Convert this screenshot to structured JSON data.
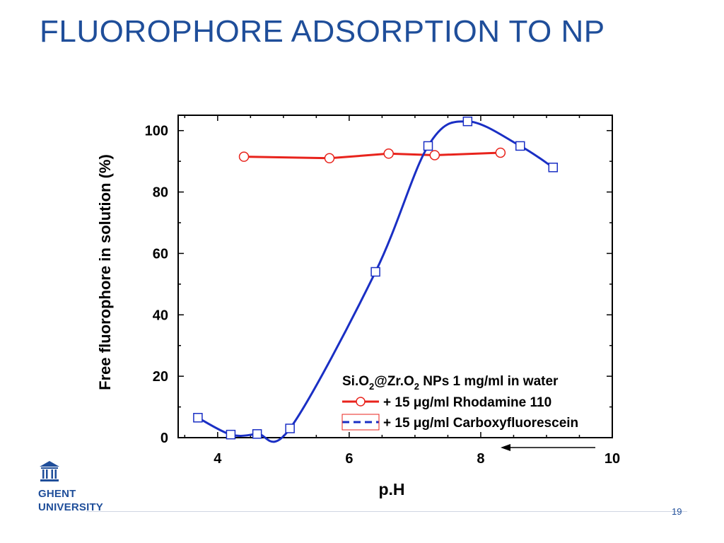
{
  "slide": {
    "title": "FLUOROPHORE ADSORPTION TO NP",
    "page_number": "19"
  },
  "logo": {
    "line1": "GHENT",
    "line2": "UNIVERSITY",
    "icon": "building-columns-icon"
  },
  "colors": {
    "title": "#1f4e9a",
    "rhodamine": "#e8231c",
    "carboxy": "#1a2fc4",
    "axis": "#000000"
  },
  "chart_data": {
    "type": "line",
    "title": "",
    "xlabel": "p.H",
    "ylabel": "Free fluorophore in solution (%)",
    "xlim": [
      3.4,
      10
    ],
    "ylim": [
      0,
      105
    ],
    "x_ticks": [
      4,
      6,
      8,
      10
    ],
    "y_ticks": [
      0,
      20,
      40,
      60,
      80,
      100
    ],
    "grid": false,
    "legend_placement": "bottom-right",
    "annotation": "Si.O2@Zr.O2 NPs 1 mg/ml in water",
    "series": [
      {
        "name": "+ 15 μg/ml Rhodamine 110",
        "marker": "circle",
        "line": "solid",
        "x": [
          4.4,
          5.7,
          6.6,
          7.3,
          8.3
        ],
        "y": [
          91.5,
          91,
          92.5,
          92,
          92.8
        ]
      },
      {
        "name": "+ 15 μg/ml Carboxyfluorescein",
        "marker": "square",
        "line": "dashed",
        "x": [
          3.7,
          4.2,
          4.6,
          5.1,
          6.4,
          7.2,
          7.8,
          8.6,
          9.1
        ],
        "y": [
          6.5,
          1,
          1.2,
          3,
          54,
          95,
          103,
          95,
          88
        ]
      }
    ]
  }
}
